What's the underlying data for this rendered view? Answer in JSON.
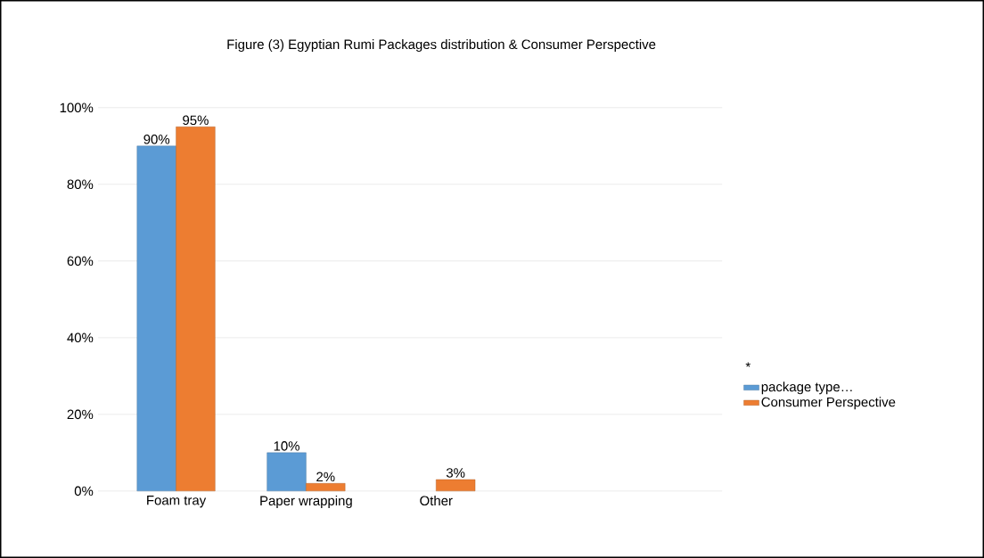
{
  "chart_data": {
    "type": "bar",
    "title": "Figure (3) Egyptian Rumi Packages distribution & Consumer Perspective",
    "categories": [
      "Foam tray",
      "Paper wrapping",
      "Other"
    ],
    "series": [
      {
        "name": "package type…",
        "color": "#5b9bd5",
        "values": [
          90,
          10,
          null
        ],
        "value_labels": [
          "90%",
          "10%",
          null
        ]
      },
      {
        "name": "Consumer Perspective",
        "color": "#ed7d31",
        "values": [
          95,
          2,
          3
        ],
        "value_labels": [
          "95%",
          "2%",
          "3%"
        ]
      }
    ],
    "ylim": [
      0,
      100
    ],
    "yticks": [
      {
        "value": 0,
        "label": "0%"
      },
      {
        "value": 20,
        "label": "20%"
      },
      {
        "value": 40,
        "label": "40%"
      },
      {
        "value": 60,
        "label": "60%"
      },
      {
        "value": 80,
        "label": "80%"
      },
      {
        "value": 100,
        "label": "100%"
      }
    ],
    "grid": "y",
    "legend": "right",
    "annotations": [
      "*"
    ]
  }
}
